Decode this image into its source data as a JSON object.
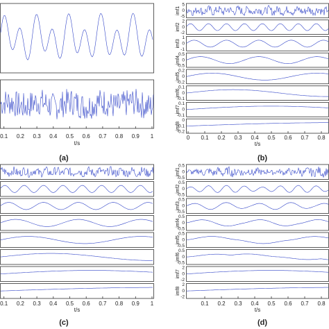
{
  "panels": [
    {
      "label": "(a)",
      "xlabel": "t/s",
      "xticks": [
        0.1,
        0.2,
        0.3,
        0.4,
        0.5,
        0.6,
        0.7,
        0.8,
        0.9,
        1
      ],
      "rows": [
        {},
        {}
      ]
    },
    {
      "label": "(b)",
      "xlabel": "t/s",
      "xticks": [
        0,
        0.1,
        0.2,
        0.3,
        0.4,
        0.5,
        0.6,
        0.7,
        0.8
      ],
      "rows": [
        {
          "name": "imf1",
          "yticks": [
            5,
            0,
            -5
          ]
        },
        {
          "name": "imf2",
          "yticks": [
            2,
            0,
            -2
          ]
        },
        {
          "name": "imf3",
          "yticks": [
            1,
            0,
            -1
          ]
        },
        {
          "name": "imf4",
          "yticks": [
            0.5,
            0,
            -0.5
          ]
        },
        {
          "name": "imf5",
          "yticks": [
            0.2,
            0,
            -0.2
          ]
        },
        {
          "name": "imf6",
          "yticks": [
            0.1,
            0,
            -0.1
          ]
        },
        {
          "name": "imf7",
          "yticks": [
            0.1,
            0,
            -0.1
          ]
        },
        {
          "name": "imf8",
          "yticks": [
            0,
            -0.1,
            -0.2
          ]
        }
      ]
    },
    {
      "label": "(c)",
      "xlabel": "t/s",
      "xticks": [
        0.1,
        0.2,
        0.3,
        0.4,
        0.5,
        0.6,
        0.7,
        0.8,
        0.9,
        1
      ],
      "rows": [
        {},
        {},
        {},
        {},
        {},
        {},
        {},
        {}
      ]
    },
    {
      "label": "(d)",
      "xlabel": "t/s",
      "xticks": [
        0.1,
        0.2,
        0.3,
        0.4,
        0.5,
        0.6,
        0.7,
        0.8
      ],
      "rows": [
        {
          "name": "imf1",
          "yticks": [
            0.5,
            0,
            -0.5
          ]
        },
        {
          "name": "imf2",
          "yticks": [
            0.5,
            0,
            -0.5
          ]
        },
        {
          "name": "imf3",
          "yticks": [
            0.5,
            0,
            -0.5
          ]
        },
        {
          "name": "imf4",
          "yticks": [
            0.5,
            0,
            -0.5
          ]
        },
        {
          "name": "imf5",
          "yticks": [
            0.5,
            0,
            -0.5
          ]
        },
        {
          "name": "imf6",
          "yticks": [
            0.5,
            0,
            -0.5
          ]
        },
        {
          "name": "imf7",
          "yticks": [
            2,
            0,
            -2
          ]
        },
        {
          "name": "imf8",
          "yticks": [
            2,
            0,
            -2
          ]
        }
      ]
    }
  ]
}
